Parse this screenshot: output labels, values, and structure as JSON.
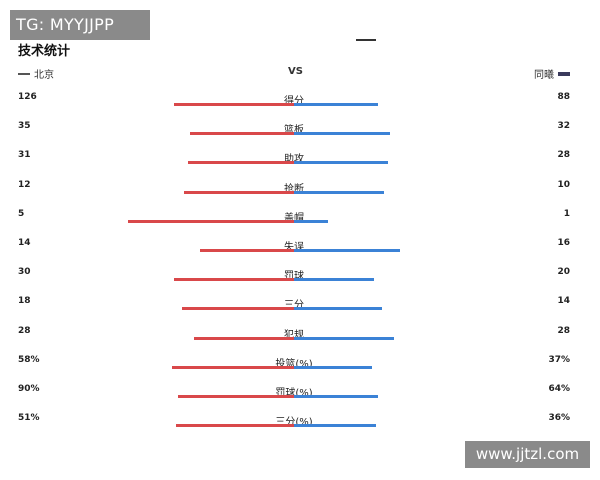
{
  "watermark_top": "TG: MYYJJPP",
  "watermark_bottom": "www.jjtzl.com",
  "title": "技术统计",
  "teams": {
    "left": "北京",
    "vs": "VS",
    "right": "同曦"
  },
  "colors": {
    "left_bar": "#d9484a",
    "right_bar": "#3b82d6"
  },
  "stats": [
    {
      "label": "得分",
      "left": "126",
      "right": "88",
      "left_bar": 0.6,
      "right_bar": 0.42
    },
    {
      "label": "篮板",
      "left": "35",
      "right": "32",
      "left_bar": 0.52,
      "right_bar": 0.48
    },
    {
      "label": "助攻",
      "left": "31",
      "right": "28",
      "left_bar": 0.53,
      "right_bar": 0.47
    },
    {
      "label": "抢断",
      "left": "12",
      "right": "10",
      "left_bar": 0.55,
      "right_bar": 0.45
    },
    {
      "label": "盖帽",
      "left": "5",
      "right": "1",
      "left_bar": 0.83,
      "right_bar": 0.17
    },
    {
      "label": "失误",
      "left": "14",
      "right": "16",
      "left_bar": 0.47,
      "right_bar": 0.53
    },
    {
      "label": "罚球",
      "left": "30",
      "right": "20",
      "left_bar": 0.6,
      "right_bar": 0.4
    },
    {
      "label": "三分",
      "left": "18",
      "right": "14",
      "left_bar": 0.56,
      "right_bar": 0.44
    },
    {
      "label": "犯规",
      "left": "28",
      "right": "28",
      "left_bar": 0.5,
      "right_bar": 0.5
    },
    {
      "label": "投篮(%)",
      "left": "58%",
      "right": "37%",
      "left_bar": 0.61,
      "right_bar": 0.39
    },
    {
      "label": "罚球(%)",
      "left": "90%",
      "right": "64%",
      "left_bar": 0.58,
      "right_bar": 0.42
    },
    {
      "label": "三分(%)",
      "left": "51%",
      "right": "36%",
      "left_bar": 0.59,
      "right_bar": 0.41
    }
  ]
}
